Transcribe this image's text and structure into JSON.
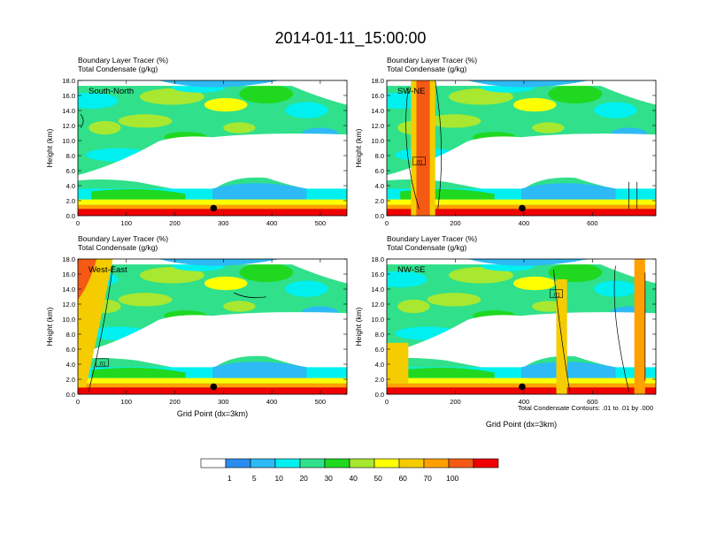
{
  "title": "2014-01-11_15:00:00",
  "panels": [
    {
      "name": "South-North",
      "field_label": "Boundary Layer Tracer",
      "field_unit": "(%)",
      "contour_label": "Total Condensate",
      "contour_unit": "(g/kg)",
      "xlim": [
        0,
        555
      ],
      "xticks": [
        "0",
        "100",
        "200",
        "300",
        "400",
        "500"
      ],
      "xtick_vals": [
        0,
        100,
        200,
        300,
        400,
        500
      ],
      "ylabel": "Height (km)",
      "xlabel": "",
      "marker_x": 280,
      "contour_label_text": ""
    },
    {
      "name": "SW-NE",
      "field_label": "Boundary Layer Tracer",
      "field_unit": "(%)",
      "contour_label": "Total Condensate",
      "contour_unit": "(g/kg)",
      "xlim": [
        0,
        785
      ],
      "xticks": [
        "0",
        "200",
        "400",
        "600"
      ],
      "xtick_vals": [
        0,
        200,
        400,
        600
      ],
      "ylabel": "Height (km)",
      "xlabel": "",
      "marker_x": 395,
      "contour_label_text": ".01"
    },
    {
      "name": "West-East",
      "field_label": "Boundary Layer Tracer",
      "field_unit": "(%)",
      "contour_label": "Total Condensate",
      "contour_unit": "(g/kg)",
      "xlim": [
        0,
        555
      ],
      "xticks": [
        "0",
        "100",
        "200",
        "300",
        "400",
        "500"
      ],
      "xtick_vals": [
        0,
        100,
        200,
        300,
        400,
        500
      ],
      "ylabel": "Height (km)",
      "xlabel": "Grid Point (dx=3km)",
      "marker_x": 280,
      "contour_label_text": ".01"
    },
    {
      "name": "NW-SE",
      "field_label": "Boundary Layer Tracer",
      "field_unit": "(%)",
      "contour_label": "Total Condensate",
      "contour_unit": "(g/kg)",
      "xlim": [
        0,
        785
      ],
      "xticks": [
        "0",
        "200",
        "400",
        "600"
      ],
      "xtick_vals": [
        0,
        200,
        400,
        600
      ],
      "ylabel": "Height (km)",
      "xlabel": "Grid Point (dx=3km)",
      "marker_x": 395,
      "contour_label_text": ".01"
    }
  ],
  "yticks": [
    "0.0",
    "2.0",
    "4.0",
    "6.0",
    "8.0",
    "10.0",
    "12.0",
    "14.0",
    "16.0",
    "18.0"
  ],
  "ylim": [
    0,
    18
  ],
  "contour_note": "Total Condensate Contours: .01 to .01 by .000",
  "colorbar": {
    "colors": [
      "#ffffff",
      "#2b8cf0",
      "#2dbaf5",
      "#00f0f0",
      "#30e08a",
      "#20d820",
      "#a8e830",
      "#ffff00",
      "#f5cc00",
      "#ffa000",
      "#f55a14",
      "#f00000"
    ],
    "labels": [
      "1",
      "5",
      "10",
      "20",
      "30",
      "40",
      "50",
      "60",
      "70",
      "100"
    ]
  },
  "chart_data": [
    {
      "type": "heatmap",
      "title": "South-North",
      "field": "Boundary Layer Tracer (%)",
      "contours": "Total Condensate (g/kg)",
      "xlabel": "",
      "ylabel": "Height (km)",
      "xlim": [
        0,
        555
      ],
      "ylim": [
        0,
        18
      ],
      "levels": [
        1,
        5,
        10,
        20,
        30,
        40,
        50,
        60,
        70,
        100
      ],
      "marker": {
        "x": 280,
        "y": 1.0
      }
    },
    {
      "type": "heatmap",
      "title": "SW-NE",
      "field": "Boundary Layer Tracer (%)",
      "contours": "Total Condensate (g/kg)",
      "xlabel": "",
      "ylabel": "Height (km)",
      "xlim": [
        0,
        785
      ],
      "ylim": [
        0,
        18
      ],
      "levels": [
        1,
        5,
        10,
        20,
        30,
        40,
        50,
        60,
        70,
        100
      ],
      "marker": {
        "x": 395,
        "y": 1.0
      }
    },
    {
      "type": "heatmap",
      "title": "West-East",
      "field": "Boundary Layer Tracer (%)",
      "contours": "Total Condensate (g/kg)",
      "xlabel": "Grid Point (dx=3km)",
      "ylabel": "Height (km)",
      "xlim": [
        0,
        555
      ],
      "ylim": [
        0,
        18
      ],
      "levels": [
        1,
        5,
        10,
        20,
        30,
        40,
        50,
        60,
        70,
        100
      ],
      "marker": {
        "x": 280,
        "y": 1.0
      }
    },
    {
      "type": "heatmap",
      "title": "NW-SE",
      "field": "Boundary Layer Tracer (%)",
      "contours": "Total Condensate (g/kg)",
      "xlabel": "Grid Point (dx=3km)",
      "ylabel": "Height (km)",
      "xlim": [
        0,
        785
      ],
      "ylim": [
        0,
        18
      ],
      "levels": [
        1,
        5,
        10,
        20,
        30,
        40,
        50,
        60,
        70,
        100
      ],
      "marker": {
        "x": 395,
        "y": 1.0
      }
    }
  ]
}
